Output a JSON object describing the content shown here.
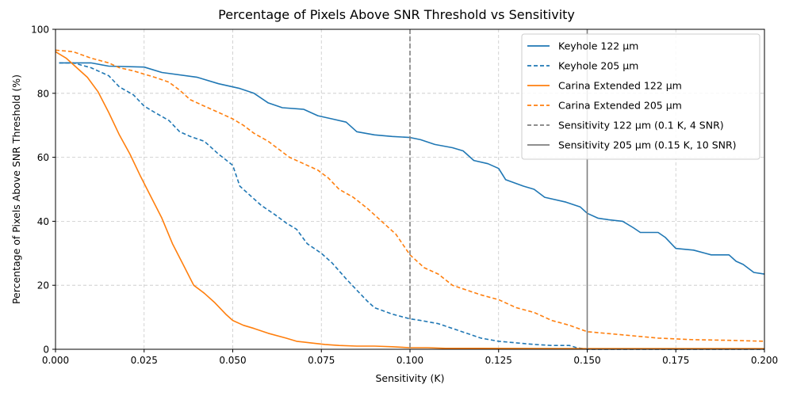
{
  "chart_data": {
    "type": "line",
    "title": "Percentage of Pixels Above SNR Threshold vs Sensitivity",
    "xlabel": "Sensitivity (K)",
    "ylabel": "Percentage of Pixels Above SNR Threshold (%)",
    "xlim": [
      0.0,
      0.2
    ],
    "ylim": [
      0,
      100
    ],
    "x_ticks": [
      0.0,
      0.025,
      0.05,
      0.075,
      0.1,
      0.125,
      0.15,
      0.175,
      0.2
    ],
    "x_tick_labels": [
      "0.000",
      "0.025",
      "0.050",
      "0.075",
      "0.100",
      "0.125",
      "0.150",
      "0.175",
      "0.200"
    ],
    "y_ticks": [
      0,
      20,
      40,
      60,
      80,
      100
    ],
    "y_tick_labels": [
      "0",
      "20",
      "40",
      "60",
      "80",
      "100"
    ],
    "grid": true,
    "legend_position": "top-right",
    "colors": {
      "blue": "#1f77b4",
      "orange": "#ff7f0e",
      "gray": "#7f7f7f"
    },
    "series": [
      {
        "name": "Keyhole 122 μm",
        "color": "#1f77b4",
        "dash": "solid",
        "x": [
          0.001,
          0.01,
          0.015,
          0.025,
          0.03,
          0.04,
          0.046,
          0.05,
          0.052,
          0.056,
          0.06,
          0.064,
          0.07,
          0.074,
          0.078,
          0.082,
          0.085,
          0.09,
          0.095,
          0.1,
          0.103,
          0.107,
          0.112,
          0.115,
          0.118,
          0.122,
          0.125,
          0.127,
          0.132,
          0.135,
          0.138,
          0.144,
          0.148,
          0.15,
          0.153,
          0.156,
          0.16,
          0.163,
          0.165,
          0.17,
          0.172,
          0.175,
          0.18,
          0.185,
          0.19,
          0.192,
          0.194,
          0.197,
          0.2
        ],
        "y": [
          89.5,
          89.5,
          88.5,
          88.2,
          86.5,
          85.0,
          83.0,
          82.0,
          81.5,
          80.0,
          77.0,
          75.5,
          75.0,
          73.0,
          72.0,
          71.0,
          68.0,
          67.0,
          66.5,
          66.2,
          65.5,
          64.0,
          63.0,
          62.0,
          59.0,
          58.0,
          56.5,
          53.0,
          51.0,
          50.0,
          47.5,
          46.0,
          44.5,
          42.5,
          41.0,
          40.5,
          40.0,
          38.0,
          36.5,
          36.5,
          35.0,
          31.5,
          31.0,
          29.5,
          29.5,
          27.5,
          26.5,
          24.0,
          23.5
        ]
      },
      {
        "name": "Keyhole 205 μm",
        "color": "#1f77b4",
        "dash": "dashed",
        "x": [
          0.001,
          0.005,
          0.01,
          0.015,
          0.018,
          0.022,
          0.025,
          0.028,
          0.032,
          0.035,
          0.038,
          0.042,
          0.046,
          0.05,
          0.052,
          0.055,
          0.058,
          0.062,
          0.065,
          0.068,
          0.071,
          0.075,
          0.078,
          0.08,
          0.082,
          0.085,
          0.088,
          0.09,
          0.095,
          0.1,
          0.103,
          0.108,
          0.112,
          0.116,
          0.12,
          0.125,
          0.13,
          0.135,
          0.14,
          0.145,
          0.147,
          0.15,
          0.16,
          0.17,
          0.18,
          0.19,
          0.2
        ],
        "y": [
          89.5,
          89.5,
          88.0,
          85.5,
          82.0,
          79.5,
          76.0,
          74.0,
          71.5,
          68.0,
          66.5,
          65.0,
          61.0,
          57.5,
          51.0,
          48.0,
          45.0,
          42.0,
          39.5,
          37.5,
          33.0,
          30.0,
          27.0,
          24.5,
          22.0,
          18.5,
          15.0,
          13.0,
          11.0,
          9.5,
          9.0,
          8.0,
          6.5,
          5.0,
          3.5,
          2.5,
          2.0,
          1.5,
          1.2,
          1.2,
          0.5,
          0.0,
          0.0,
          0.0,
          0.0,
          0.0,
          0.0
        ]
      },
      {
        "name": "Carina Extended 122 μm",
        "color": "#ff7f0e",
        "dash": "solid",
        "x": [
          0.0,
          0.003,
          0.006,
          0.009,
          0.012,
          0.015,
          0.018,
          0.021,
          0.024,
          0.027,
          0.03,
          0.033,
          0.036,
          0.039,
          0.042,
          0.045,
          0.048,
          0.05,
          0.053,
          0.056,
          0.06,
          0.065,
          0.068,
          0.072,
          0.076,
          0.08,
          0.085,
          0.09,
          0.095,
          0.1,
          0.105,
          0.11,
          0.12,
          0.15,
          0.2
        ],
        "y": [
          93.0,
          91.0,
          88.0,
          85.0,
          80.5,
          74.0,
          67.0,
          61.0,
          54.0,
          47.5,
          41.0,
          33.0,
          26.5,
          20.0,
          17.5,
          14.5,
          11.0,
          9.0,
          7.5,
          6.5,
          5.0,
          3.5,
          2.5,
          2.0,
          1.5,
          1.2,
          1.0,
          1.0,
          0.8,
          0.5,
          0.5,
          0.3,
          0.3,
          0.2,
          0.2
        ]
      },
      {
        "name": "Carina Extended 205 μm",
        "color": "#ff7f0e",
        "dash": "dashed",
        "x": [
          0.0,
          0.005,
          0.01,
          0.015,
          0.018,
          0.022,
          0.025,
          0.028,
          0.032,
          0.035,
          0.038,
          0.042,
          0.046,
          0.05,
          0.053,
          0.056,
          0.06,
          0.063,
          0.066,
          0.07,
          0.074,
          0.077,
          0.08,
          0.084,
          0.088,
          0.092,
          0.096,
          0.1,
          0.104,
          0.108,
          0.112,
          0.116,
          0.12,
          0.125,
          0.13,
          0.135,
          0.14,
          0.145,
          0.15,
          0.16,
          0.17,
          0.18,
          0.19,
          0.2
        ],
        "y": [
          93.5,
          93.0,
          91.0,
          89.5,
          88.0,
          87.0,
          86.0,
          85.0,
          83.5,
          81.0,
          78.0,
          76.0,
          74.0,
          72.0,
          70.0,
          67.5,
          65.0,
          62.5,
          60.0,
          58.0,
          56.0,
          53.5,
          50.0,
          47.5,
          44.0,
          40.0,
          36.0,
          29.5,
          25.5,
          23.5,
          20.0,
          18.5,
          17.0,
          15.5,
          13.0,
          11.5,
          9.0,
          7.5,
          5.5,
          4.5,
          3.5,
          3.0,
          2.8,
          2.5
        ]
      }
    ],
    "reference_lines": [
      {
        "name": "Sensitivity 122 μm (0.1 K, 4 SNR)",
        "x": 0.1,
        "color": "#7f7f7f",
        "dash": "dashed"
      },
      {
        "name": "Sensitivity 205 μm (0.15 K, 10 SNR)",
        "x": 0.15,
        "color": "#7f7f7f",
        "dash": "solid"
      }
    ]
  }
}
